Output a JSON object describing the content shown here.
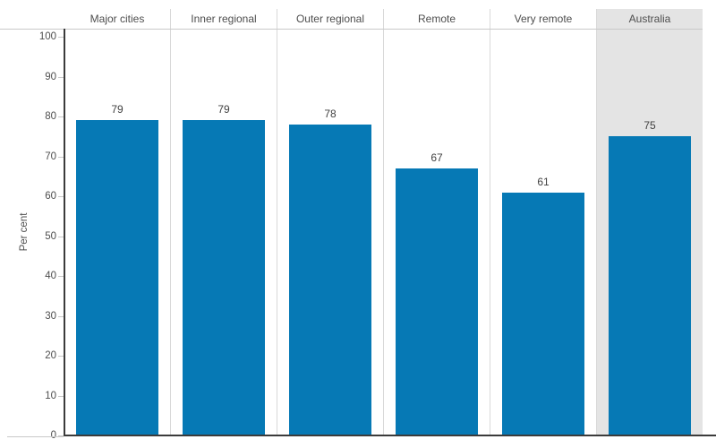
{
  "chart_data": {
    "type": "bar",
    "title": "",
    "categories": [
      "Major cities",
      "Inner regional",
      "Outer regional",
      "Remote",
      "Very remote",
      "Australia"
    ],
    "values": [
      79,
      79,
      78,
      67,
      61,
      75
    ],
    "value_labels": [
      "79",
      "79",
      "78",
      "67",
      "61",
      "75"
    ],
    "highlighted_category": "Australia",
    "xlabel": "",
    "ylabel": "Per cent",
    "ylim": [
      0,
      100
    ],
    "yticks": [
      0,
      10,
      20,
      30,
      40,
      50,
      60,
      70,
      80,
      90,
      100
    ],
    "grid": false,
    "legend": "none",
    "colors": {
      "bar": "#0679b5",
      "highlight_background": "#e4e4e4",
      "divider": "#d9d9d9",
      "axis": "#3b3b3b",
      "text": "#4e4e4e",
      "tick": "#c9c9c9"
    }
  }
}
